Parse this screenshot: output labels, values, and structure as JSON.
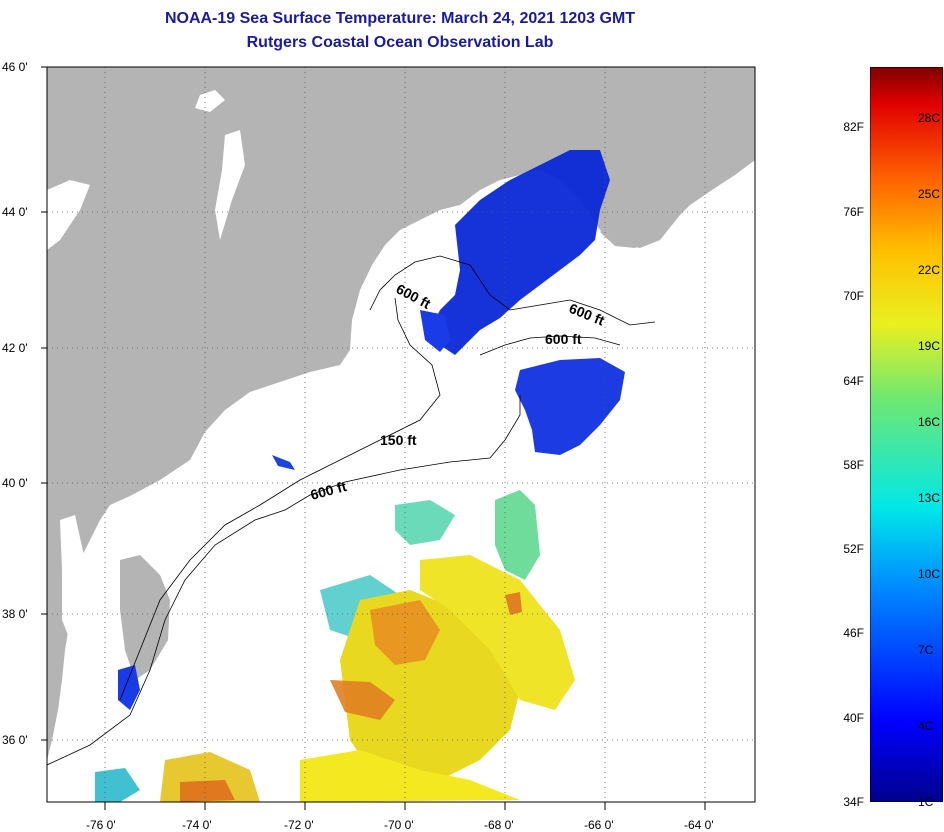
{
  "title": "NOAA-19 Sea Surface Temperature:  March 24, 2021 1203 GMT",
  "subtitle": "Rutgers Coastal Ocean Observation Lab",
  "lat_labels": [
    "46 0'",
    "44 0'",
    "42 0'",
    "40 0'",
    "38 0'",
    "36 0'"
  ],
  "lon_labels": [
    "-76 0'",
    "-74 0'",
    "-72 0'",
    "-70 0'",
    "-68 0'",
    "-66 0'",
    "-64 0'"
  ],
  "contour_labels": [
    "600 ft",
    "600 ft",
    "600 ft",
    "150 ft",
    "600 ft"
  ],
  "colorbar": {
    "fahrenheit": [
      "82F",
      "76F",
      "70F",
      "64F",
      "58F",
      "52F",
      "46F",
      "40F",
      "34F"
    ],
    "celsius": [
      "28C",
      "25C",
      "22C",
      "19C",
      "16C",
      "13C",
      "10C",
      "7C",
      "4C",
      "1C"
    ]
  },
  "colors": {
    "land": "#b4b4b4",
    "title": "#1a1aa0",
    "cold": "#0a28d8",
    "warm": "#f0e000"
  }
}
